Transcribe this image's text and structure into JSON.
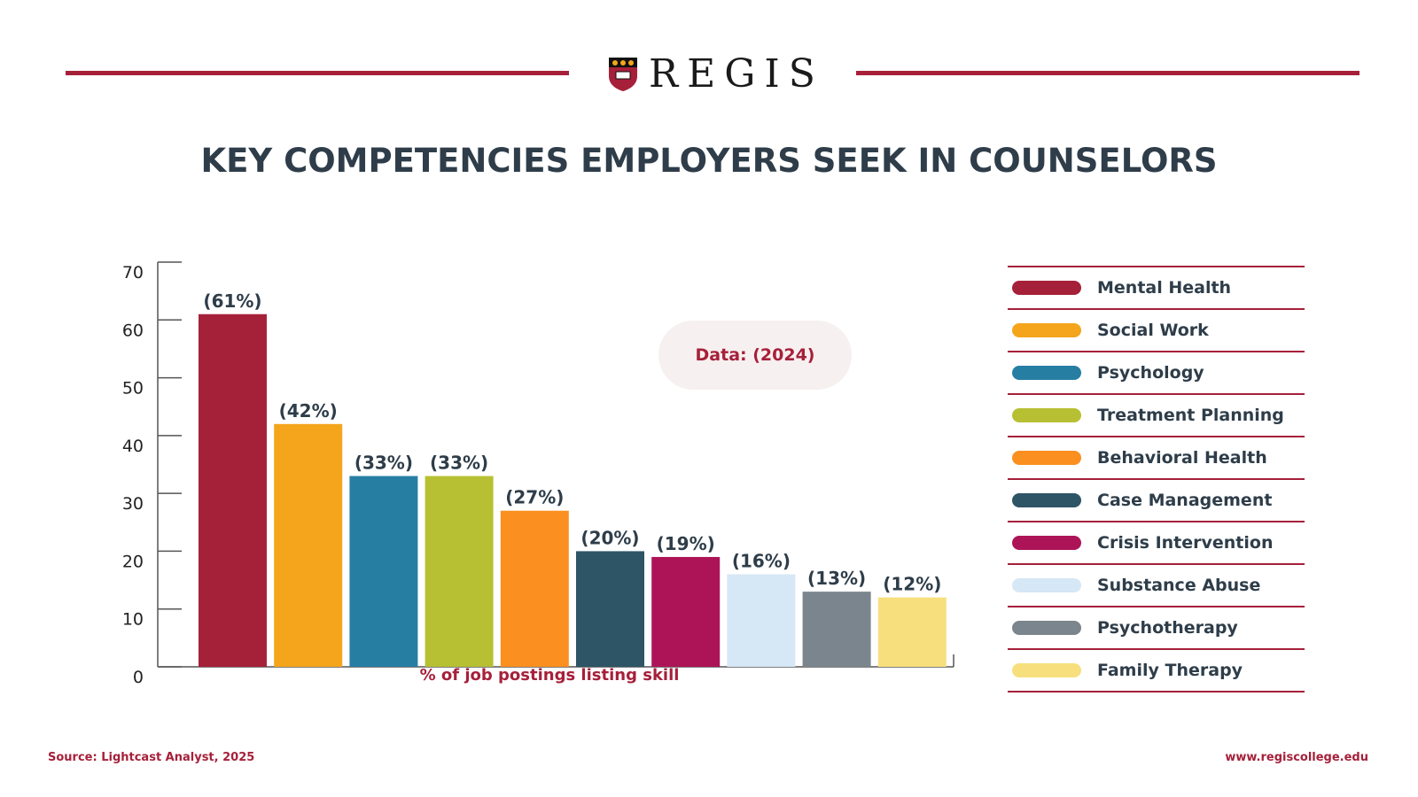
{
  "brand": {
    "name": "REGIS",
    "accent": "#a6203a"
  },
  "title": "KEY COMPETENCIES EMPLOYERS SEEK IN COUNSELORS",
  "badge": "Data: (2024)",
  "source": "Source: Lightcast Analyst, 2025",
  "website": "www.regiscollege.edu",
  "chart_data": {
    "type": "bar",
    "title": "KEY COMPETENCIES EMPLOYERS SEEK IN COUNSELORS",
    "xlabel": "% of job postings listing skill",
    "ylabel": "",
    "ylim": [
      0,
      70
    ],
    "yticks": [
      0,
      10,
      20,
      30,
      40,
      50,
      60,
      70
    ],
    "grid": false,
    "legend": "right",
    "categories": [
      "Mental Health",
      "Social Work",
      "Psychology",
      "Treatment Planning",
      "Behavioral Health",
      "Case Management",
      "Crisis Intervention",
      "Substance Abuse",
      "Psychotherapy",
      "Family Therapy"
    ],
    "values": [
      61,
      42,
      33,
      33,
      27,
      20,
      19,
      16,
      13,
      12
    ],
    "data_labels": [
      "(61%)",
      "(42%)",
      "(33%)",
      "(33%)",
      "(27%)",
      "(20%)",
      "(19%)",
      "(16%)",
      "(13%)",
      "(12%)"
    ],
    "colors": [
      "#a52139",
      "#f4a51c",
      "#277ea3",
      "#b7c033",
      "#fb8f1f",
      "#2d5565",
      "#ad1457",
      "#d6e7f5",
      "#7a858d",
      "#f7df7e"
    ]
  }
}
